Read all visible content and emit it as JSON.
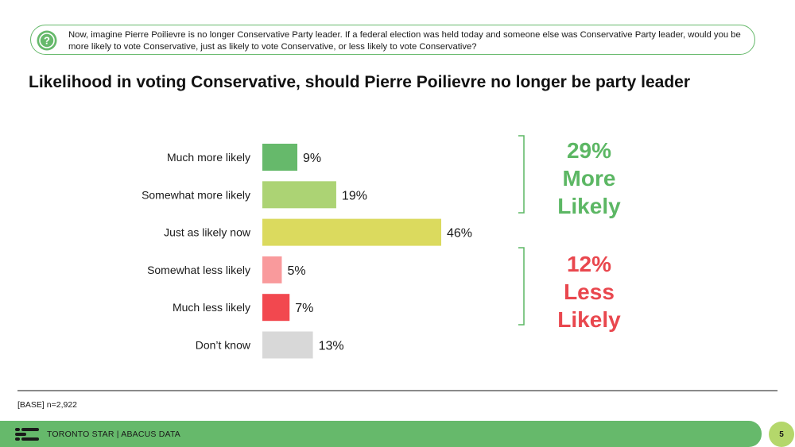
{
  "question": {
    "icon": "question-circle-icon",
    "text": "Now, imagine Pierre Poilievre is no longer Conservative Party leader. If a federal election was held today and someone else was Conservative Party leader, would you be more likely to vote Conservative, just as likely to vote Conservative, or less likely to vote Conservative?"
  },
  "chart_data": {
    "type": "bar",
    "orientation": "horizontal",
    "title": "Likelihood in voting Conservative, should Pierre Poilievre no longer be party leader",
    "categories": [
      "Much more likely",
      "Somewhat more likely",
      "Just as likely now",
      "Somewhat less likely",
      "Much less likely",
      "Don’t know"
    ],
    "values": [
      9,
      19,
      46,
      5,
      7,
      13
    ],
    "value_labels": [
      "9%",
      "19%",
      "46%",
      "5%",
      "7%",
      "13%"
    ],
    "bar_colors": [
      "#66b96b",
      "#acd374",
      "#dbda5e",
      "#f99a9c",
      "#f2484f",
      "#d8d8d8"
    ],
    "unit": "%",
    "grid": false,
    "legend": "none"
  },
  "summary": {
    "more": {
      "pct": "29%",
      "label_1": "More",
      "label_2": "Likely",
      "color": "#5cb764"
    },
    "less": {
      "pct": "12%",
      "label_1": "Less",
      "label_2": "Likely",
      "color": "#e9474e"
    }
  },
  "footer": {
    "base_note": "[BASE] n=2,922",
    "source": "TORONTO STAR  |  ABACUS DATA",
    "page_number": "5",
    "logo_icon": "abacus-logo-icon"
  }
}
